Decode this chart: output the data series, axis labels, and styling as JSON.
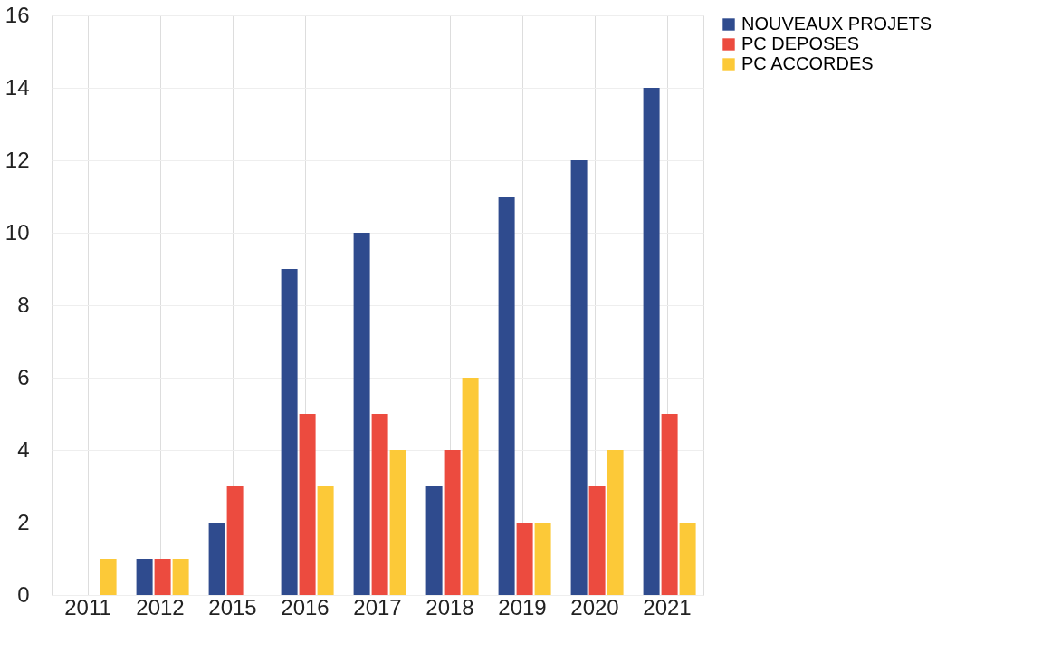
{
  "chart_data": {
    "type": "bar",
    "categories": [
      "2011",
      "2012",
      "2015",
      "2016",
      "2017",
      "2018",
      "2019",
      "2020",
      "2021"
    ],
    "series": [
      {
        "name": "NOUVEAUX PROJETS",
        "color": "#2f4b8e",
        "values": [
          0,
          1,
          2,
          9,
          10,
          3,
          11,
          12,
          14
        ]
      },
      {
        "name": "PC DEPOSES",
        "color": "#ec4b3f",
        "values": [
          0,
          1,
          3,
          5,
          5,
          4,
          2,
          3,
          5
        ]
      },
      {
        "name": "PC ACCORDES",
        "color": "#fcc938",
        "values": [
          1,
          1,
          0,
          3,
          4,
          6,
          2,
          4,
          2
        ]
      }
    ],
    "ylim": [
      0,
      16
    ],
    "yticks": [
      0,
      2,
      4,
      6,
      8,
      10,
      12,
      14,
      16
    ],
    "grid": true,
    "legend": "right"
  }
}
